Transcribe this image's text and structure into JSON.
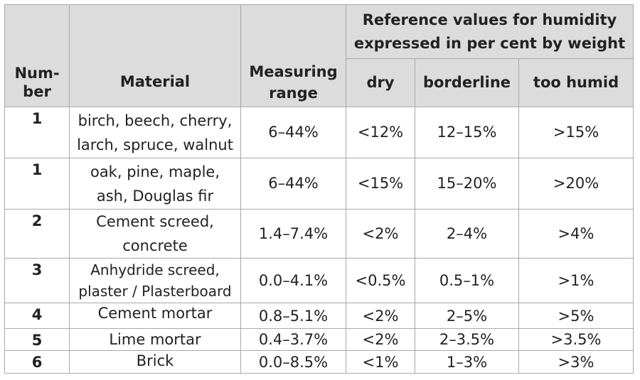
{
  "table": {
    "headers": {
      "number": "Num-\nber",
      "material": "Material",
      "range": "Measuring range",
      "reference_group": "Reference values for humidity expressed in per cent by weight",
      "dry": "dry",
      "borderline": "borderline",
      "too_humid": "too humid"
    },
    "rows": [
      {
        "number": "1",
        "material": "birch, beech, cherry, larch, spruce, walnut",
        "range": "6–44%",
        "dry": "<12%",
        "borderline": "12–15%",
        "too_humid": ">15%"
      },
      {
        "number": "1",
        "material": "oak, pine, maple, ash, Douglas fir",
        "range": "6–44%",
        "dry": "<15%",
        "borderline": "15–20%",
        "too_humid": ">20%"
      },
      {
        "number": "2",
        "material": "Cement screed, concrete",
        "range": "1.4–7.4%",
        "dry": "<2%",
        "borderline": "2–4%",
        "too_humid": ">4%"
      },
      {
        "number": "3",
        "material": "Anhydride screed, plaster / Plasterboard",
        "range": "0.0–4.1%",
        "dry": "<0.5%",
        "borderline": "0.5–1%",
        "too_humid": ">1%"
      },
      {
        "number": "4",
        "material": "Cement mortar",
        "range": "0.8–5.1%",
        "dry": "<2%",
        "borderline": "2–5%",
        "too_humid": ">5%"
      },
      {
        "number": "5",
        "material": "Lime mortar",
        "range": "0.4–3.7%",
        "dry": "<2%",
        "borderline": "2–3.5%",
        "too_humid": ">3.5%"
      },
      {
        "number": "6",
        "material": "Brick",
        "range": "0.0–8.5%",
        "dry": "<1%",
        "borderline": "1–3%",
        "too_humid": ">3%"
      }
    ]
  }
}
